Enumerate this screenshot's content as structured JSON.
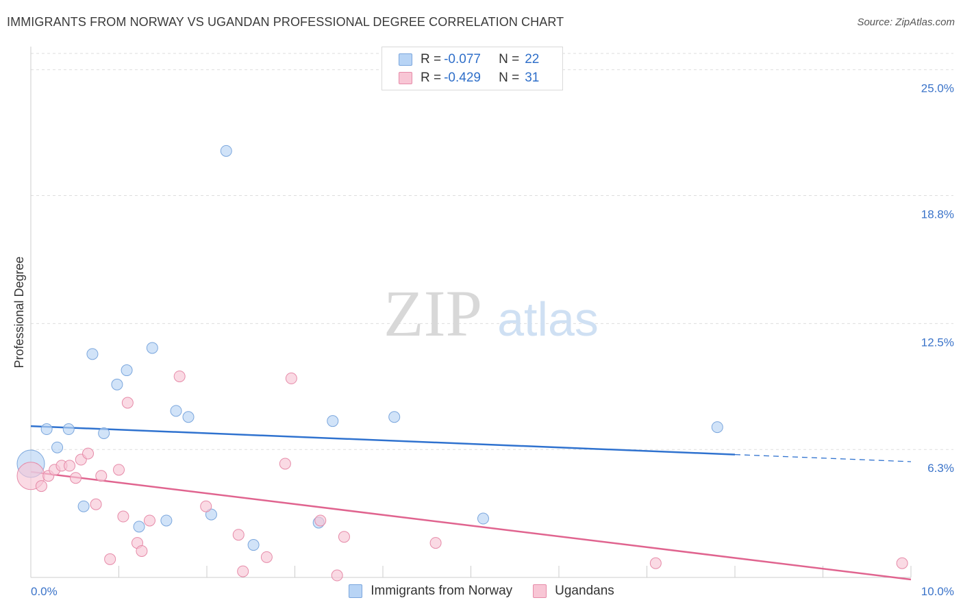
{
  "header": {
    "title": "IMMIGRANTS FROM NORWAY VS UGANDAN PROFESSIONAL DEGREE CORRELATION CHART",
    "source": "Source: ZipAtlas.com"
  },
  "watermark": {
    "zip": "ZIP",
    "atlas": "atlas"
  },
  "legend": {
    "rows": [
      {
        "r_label": "R =",
        "r_value": "-0.077",
        "n_label": "N =",
        "n_value": "22"
      },
      {
        "r_label": "R =",
        "r_value": "-0.429",
        "n_label": "N =",
        "n_value": "31"
      }
    ]
  },
  "bottom_legend": {
    "norway": "Immigrants from Norway",
    "ugandans": "Ugandans"
  },
  "colors": {
    "norway_fill": "#b8d4f5",
    "norway_stroke": "#7aa6dd",
    "norway_line": "#2f72cf",
    "uganda_fill": "#f8c6d5",
    "uganda_stroke": "#e68aa8",
    "uganda_line": "#e0648f",
    "tick_label": "#3a73c9",
    "grid": "#dddddd"
  },
  "chart_data": {
    "type": "scatter",
    "title": "IMMIGRANTS FROM NORWAY VS UGANDAN PROFESSIONAL DEGREE CORRELATION CHART",
    "xlabel": "",
    "ylabel": "Professional Degree",
    "xlim": [
      0,
      10
    ],
    "ylim": [
      0,
      25.8
    ],
    "x_tick_labels": [
      "0.0%",
      "10.0%"
    ],
    "y_ticks": [
      6.3,
      12.5,
      18.8,
      25.0
    ],
    "y_tick_labels": [
      "6.3%",
      "12.5%",
      "18.8%",
      "25.0%"
    ],
    "series": [
      {
        "name": "Immigrants from Norway",
        "r": -0.077,
        "n": 22,
        "points": [
          {
            "x": 0.0,
            "y": 5.6,
            "big": true
          },
          {
            "x": 0.18,
            "y": 7.3
          },
          {
            "x": 0.3,
            "y": 6.4
          },
          {
            "x": 0.43,
            "y": 7.3
          },
          {
            "x": 0.6,
            "y": 3.5
          },
          {
            "x": 0.7,
            "y": 11.0
          },
          {
            "x": 0.83,
            "y": 7.1
          },
          {
            "x": 0.98,
            "y": 9.5
          },
          {
            "x": 1.09,
            "y": 10.2
          },
          {
            "x": 1.23,
            "y": 2.5
          },
          {
            "x": 1.38,
            "y": 11.3
          },
          {
            "x": 1.54,
            "y": 2.8
          },
          {
            "x": 1.65,
            "y": 8.2
          },
          {
            "x": 1.79,
            "y": 7.9
          },
          {
            "x": 2.05,
            "y": 3.1
          },
          {
            "x": 2.22,
            "y": 21.0
          },
          {
            "x": 2.53,
            "y": 1.6
          },
          {
            "x": 3.27,
            "y": 2.7
          },
          {
            "x": 3.43,
            "y": 7.7
          },
          {
            "x": 4.13,
            "y": 7.9
          },
          {
            "x": 5.14,
            "y": 2.9
          },
          {
            "x": 7.8,
            "y": 7.4
          }
        ],
        "trend": {
          "x0": 0,
          "y0": 7.45,
          "x1": 8.0,
          "y1": 6.05,
          "dash_to_x": 10.0,
          "dash_to_y": 5.7
        }
      },
      {
        "name": "Ugandans",
        "r": -0.429,
        "n": 31,
        "points": [
          {
            "x": 0.0,
            "y": 5.0,
            "big": true
          },
          {
            "x": 0.12,
            "y": 4.5
          },
          {
            "x": 0.2,
            "y": 5.0
          },
          {
            "x": 0.27,
            "y": 5.3
          },
          {
            "x": 0.35,
            "y": 5.5
          },
          {
            "x": 0.44,
            "y": 5.5
          },
          {
            "x": 0.51,
            "y": 4.9
          },
          {
            "x": 0.57,
            "y": 5.8
          },
          {
            "x": 0.65,
            "y": 6.1
          },
          {
            "x": 0.74,
            "y": 3.6
          },
          {
            "x": 0.8,
            "y": 5.0
          },
          {
            "x": 0.9,
            "y": 0.9
          },
          {
            "x": 1.0,
            "y": 5.3
          },
          {
            "x": 1.05,
            "y": 3.0
          },
          {
            "x": 1.1,
            "y": 8.6
          },
          {
            "x": 1.21,
            "y": 1.7
          },
          {
            "x": 1.26,
            "y": 1.3
          },
          {
            "x": 1.35,
            "y": 2.8
          },
          {
            "x": 1.69,
            "y": 9.9
          },
          {
            "x": 1.99,
            "y": 3.5
          },
          {
            "x": 2.36,
            "y": 2.1
          },
          {
            "x": 2.41,
            "y": 0.3
          },
          {
            "x": 2.68,
            "y": 1.0
          },
          {
            "x": 2.89,
            "y": 5.6
          },
          {
            "x": 2.96,
            "y": 9.8
          },
          {
            "x": 3.29,
            "y": 2.8
          },
          {
            "x": 3.48,
            "y": 0.1
          },
          {
            "x": 3.56,
            "y": 2.0
          },
          {
            "x": 4.6,
            "y": 1.7
          },
          {
            "x": 7.1,
            "y": 0.7
          },
          {
            "x": 9.9,
            "y": 0.7
          }
        ],
        "trend": {
          "x0": 0,
          "y0": 5.2,
          "x1": 10.0,
          "y1": -0.1
        }
      }
    ]
  }
}
